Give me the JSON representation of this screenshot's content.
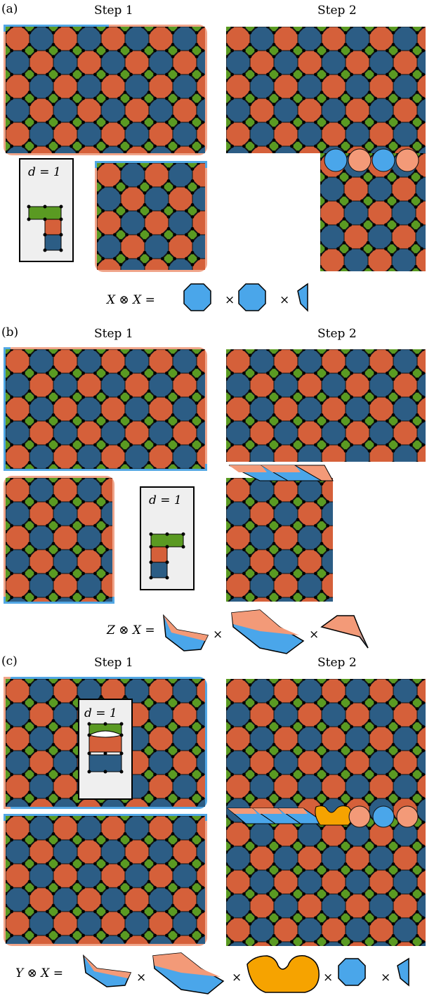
{
  "panels": [
    {
      "tag": "(a)",
      "step1": "Step 1",
      "step2": "Step 2",
      "distance_label": "d = 1",
      "equation_lhs": "X ⊗ X =",
      "times": "×"
    },
    {
      "tag": "(b)",
      "step1": "Step 1",
      "step2": "Step 2",
      "distance_label": "d = 1",
      "equation_lhs": "Z ⊗ X =",
      "times": "×"
    },
    {
      "tag": "(c)",
      "step1": "Step 1",
      "step2": "Step 2",
      "distance_label": "d = 1",
      "equation_lhs": "Y ⊗ X =",
      "times": "×"
    }
  ],
  "colors": {
    "red": "#d5603a",
    "blue": "#2c5d85",
    "green": "#5a9a22",
    "light_blue": "#4aa6ea",
    "salmon": "#f39a78",
    "orange": "#f6a300",
    "border_blue": "#52a7e4",
    "border_salmon": "#f0a58a",
    "inset_bg": "#efefef"
  }
}
